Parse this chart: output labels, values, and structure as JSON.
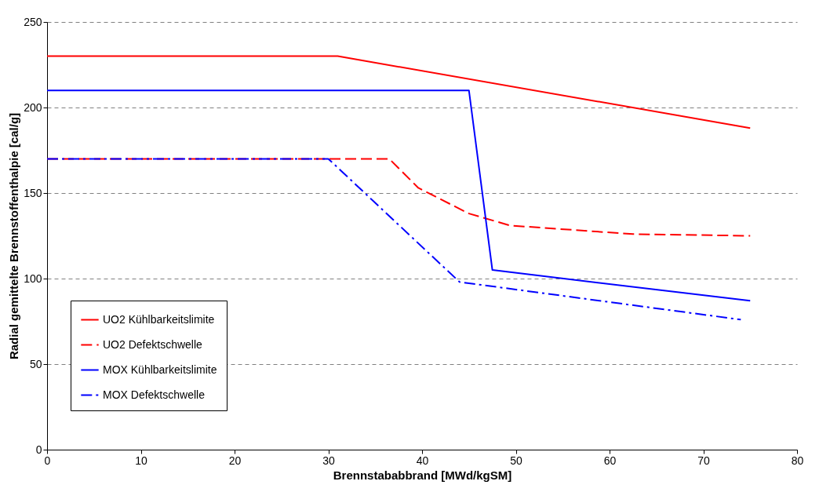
{
  "chart_data": {
    "type": "line",
    "xlabel": "Brennstababbrand [MWd/kgSM]",
    "ylabel": "Radial gemittelte Brennstoffenthalpie [cal/g]",
    "xlim": [
      0,
      80
    ],
    "xticks": [
      0,
      10,
      20,
      30,
      40,
      50,
      60,
      70,
      80
    ],
    "ylim": [
      0,
      250
    ],
    "yticks": [
      0,
      50,
      100,
      150,
      200,
      250
    ],
    "grid": "y",
    "legend": "bottom left",
    "marker": "none",
    "series": [
      {
        "name": "UO2 Kühlbarkeitslimite",
        "color": "#ff0000",
        "line_style": "solid",
        "x": [
          0,
          31,
          75
        ],
        "values": [
          230,
          230,
          188
        ]
      },
      {
        "name": "UO2 Defektschwelle",
        "color": "#ff0000",
        "line_style": "dashed",
        "x": [
          0,
          36.5,
          39.6,
          45,
          49.4,
          62.5,
          75
        ],
        "values": [
          170,
          170,
          153,
          138,
          131,
          126,
          125
        ]
      },
      {
        "name": "MOX Kühlbarkeitslimite",
        "color": "#0000ff",
        "line_style": "solid",
        "x": [
          0,
          45,
          47.5,
          75
        ],
        "values": [
          210,
          210,
          105,
          87
        ]
      },
      {
        "name": "MOX Defektschwelle",
        "color": "#0000ff",
        "line_style": "dashdot",
        "x": [
          0,
          30,
          44,
          74
        ],
        "values": [
          170,
          170,
          98,
          76
        ]
      }
    ]
  }
}
